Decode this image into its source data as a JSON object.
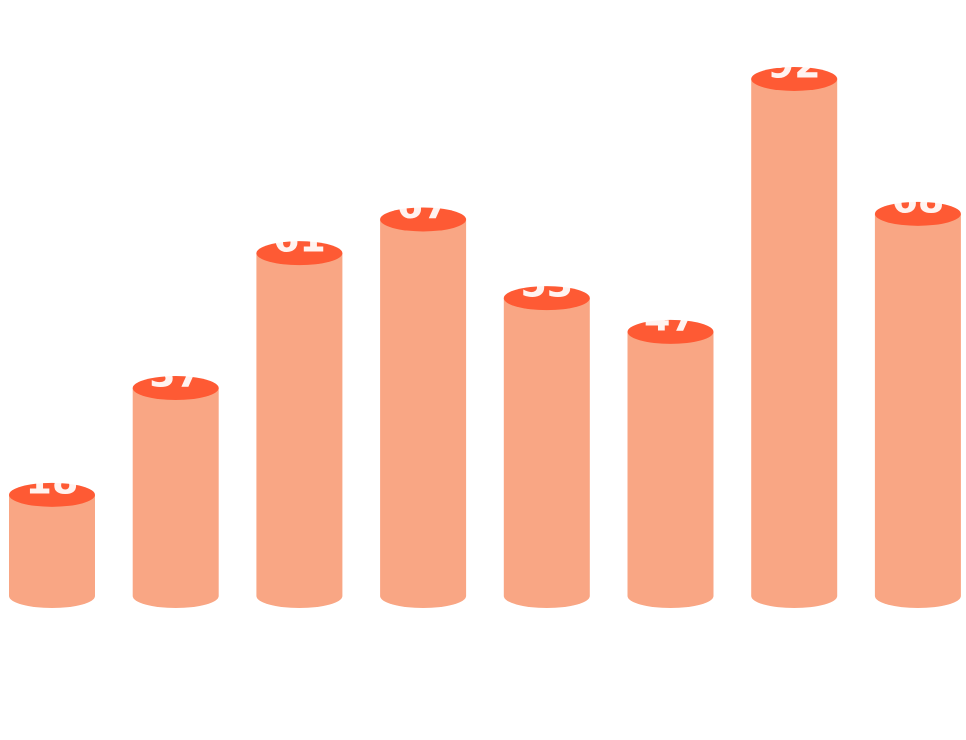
{
  "chart_data": {
    "type": "cylinder",
    "values": [
      18,
      37,
      61,
      67,
      53,
      47,
      92,
      68
    ],
    "color": "#f9a684",
    "top_color": "#fe5a34",
    "label_color": "#ffffff"
  }
}
